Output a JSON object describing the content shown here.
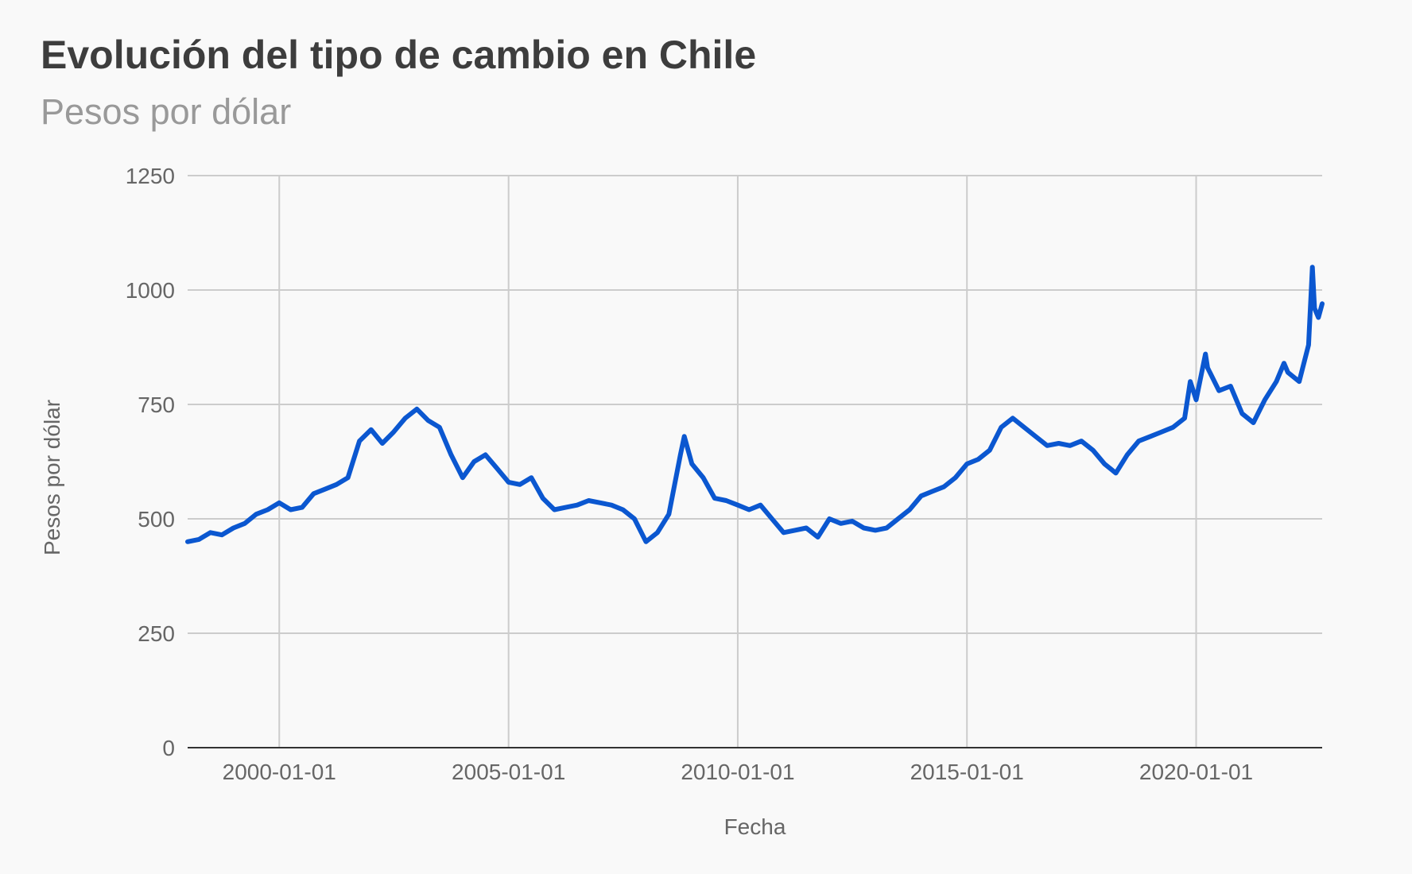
{
  "chart_data": {
    "type": "line",
    "title": "Evolución del tipo de cambio en Chile",
    "subtitle": "Pesos por dólar",
    "xlabel": "Fecha",
    "ylabel": "Pesos por dólar",
    "xlim": [
      "1998-01-01",
      "2022-10-01"
    ],
    "ylim": [
      0,
      1250
    ],
    "yticks": [
      0,
      250,
      500,
      750,
      1000,
      1250
    ],
    "ytick_labels": [
      "0",
      "250",
      "500",
      "750",
      "1000",
      "1250"
    ],
    "xticks": [
      "2000-01-01",
      "2005-01-01",
      "2010-01-01",
      "2015-01-01",
      "2020-01-01"
    ],
    "xtick_labels": [
      "2000-01-01",
      "2005-01-01",
      "2010-01-01",
      "2015-01-01",
      "2020-01-01"
    ],
    "grid": true,
    "legend": "none",
    "series": [
      {
        "color": "#0b57d0",
        "x": [
          "1998-01-01",
          "1998-04-01",
          "1998-07-01",
          "1998-10-01",
          "1999-01-01",
          "1999-04-01",
          "1999-07-01",
          "1999-10-01",
          "2000-01-01",
          "2000-04-01",
          "2000-07-01",
          "2000-10-01",
          "2001-01-01",
          "2001-04-01",
          "2001-07-01",
          "2001-10-01",
          "2002-01-01",
          "2002-04-01",
          "2002-07-01",
          "2002-10-01",
          "2003-01-01",
          "2003-04-01",
          "2003-07-01",
          "2003-10-01",
          "2004-01-01",
          "2004-04-01",
          "2004-07-01",
          "2004-10-01",
          "2005-01-01",
          "2005-04-01",
          "2005-07-01",
          "2005-10-01",
          "2006-01-01",
          "2006-04-01",
          "2006-07-01",
          "2006-10-01",
          "2007-01-01",
          "2007-04-01",
          "2007-07-01",
          "2007-10-01",
          "2008-01-01",
          "2008-04-01",
          "2008-07-01",
          "2008-10-01",
          "2008-11-01",
          "2009-01-01",
          "2009-04-01",
          "2009-07-01",
          "2009-10-01",
          "2010-01-01",
          "2010-04-01",
          "2010-07-01",
          "2010-10-01",
          "2011-01-01",
          "2011-04-01",
          "2011-07-01",
          "2011-10-01",
          "2012-01-01",
          "2012-04-01",
          "2012-07-01",
          "2012-10-01",
          "2013-01-01",
          "2013-04-01",
          "2013-07-01",
          "2013-10-01",
          "2014-01-01",
          "2014-04-01",
          "2014-07-01",
          "2014-10-01",
          "2015-01-01",
          "2015-04-01",
          "2015-07-01",
          "2015-10-01",
          "2016-01-01",
          "2016-04-01",
          "2016-07-01",
          "2016-10-01",
          "2017-01-01",
          "2017-04-01",
          "2017-07-01",
          "2017-10-01",
          "2018-01-01",
          "2018-04-01",
          "2018-07-01",
          "2018-10-01",
          "2019-01-01",
          "2019-04-01",
          "2019-07-01",
          "2019-10-01",
          "2019-11-15",
          "2020-01-01",
          "2020-03-15",
          "2020-04-01",
          "2020-07-01",
          "2020-10-01",
          "2021-01-01",
          "2021-04-01",
          "2021-07-01",
          "2021-10-01",
          "2021-12-01",
          "2022-01-01",
          "2022-04-01",
          "2022-06-15",
          "2022-07-15",
          "2022-08-01",
          "2022-09-01",
          "2022-10-01"
        ],
        "y": [
          450,
          455,
          470,
          465,
          480,
          490,
          510,
          520,
          535,
          520,
          525,
          555,
          565,
          575,
          590,
          670,
          695,
          665,
          690,
          720,
          740,
          715,
          700,
          640,
          590,
          625,
          640,
          610,
          580,
          575,
          590,
          545,
          520,
          525,
          530,
          540,
          535,
          530,
          520,
          500,
          450,
          470,
          510,
          640,
          680,
          620,
          590,
          545,
          540,
          530,
          520,
          530,
          500,
          470,
          475,
          480,
          460,
          500,
          490,
          495,
          480,
          475,
          480,
          500,
          520,
          550,
          560,
          570,
          590,
          620,
          630,
          650,
          700,
          720,
          700,
          680,
          660,
          665,
          660,
          670,
          650,
          620,
          600,
          640,
          670,
          680,
          690,
          700,
          720,
          800,
          760,
          860,
          830,
          780,
          790,
          730,
          710,
          760,
          800,
          840,
          820,
          800,
          880,
          1050,
          960,
          940,
          970
        ]
      }
    ]
  }
}
